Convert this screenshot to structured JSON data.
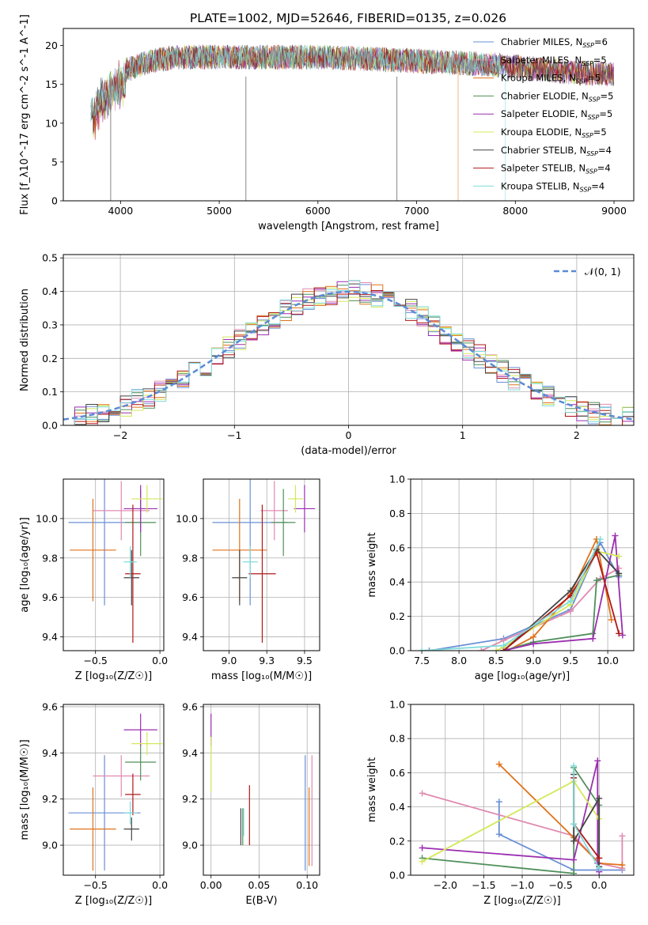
{
  "figure": {
    "title": "PLATE=1002, MJD=52646, FIBERID=0135, z=0.026",
    "series_colors": [
      "#6a8fd6",
      "#e08ab0",
      "#e0721a",
      "#4f8f5a",
      "#9b2eb0",
      "#d4e85a",
      "#444444",
      "#b01818",
      "#7fdcdc"
    ]
  },
  "chart_data": [
    {
      "id": "spectrum",
      "type": "line",
      "xlabel": "wavelength [Angstrom, rest frame]",
      "ylabel": "Flux [f_λ10^-17 erg cm^-2 s^-1 A^-1]",
      "xlim": [
        3420,
        9200
      ],
      "ylim": [
        0,
        22.2
      ],
      "xticks": [
        4000,
        5000,
        6000,
        7000,
        8000,
        9000
      ],
      "yticks": [
        0,
        5,
        10,
        15,
        20
      ],
      "legend_position": "top-right",
      "legend": [
        {
          "text": "Chabrier MILES, N",
          "sub": "SSP",
          "tail": "=6"
        },
        {
          "text": "Salpeter MILES, N",
          "sub": "SSP",
          "tail": "=5"
        },
        {
          "text": "Kroupa MILES, N",
          "sub": "SSP",
          "tail": "=5"
        },
        {
          "text": "Chabrier ELODIE, N",
          "sub": "SSP",
          "tail": "=5"
        },
        {
          "text": "Salpeter ELODIE, N",
          "sub": "SSP",
          "tail": "=5"
        },
        {
          "text": "Kroupa ELODIE, N",
          "sub": "SSP",
          "tail": "=5"
        },
        {
          "text": "Chabrier STELIB, N",
          "sub": "SSP",
          "tail": "=4"
        },
        {
          "text": "Salpeter STELIB, N",
          "sub": "SSP",
          "tail": "=4"
        },
        {
          "text": "Kroupa STELIB, N",
          "sub": "SSP",
          "tail": "=4"
        }
      ],
      "observed_spectrum_envelope": {
        "x": [
          3700,
          3800,
          3950,
          4100,
          4300,
          4600,
          5000,
          5500,
          6000,
          6500,
          7000,
          7400,
          7800,
          8200,
          8600,
          9000
        ],
        "y": [
          11.5,
          14.5,
          16.5,
          17.0,
          18.0,
          18.5,
          18.5,
          18.5,
          18.5,
          18.3,
          18.0,
          17.8,
          17.5,
          17.0,
          16.5,
          16.3
        ]
      }
    },
    {
      "id": "residuals",
      "type": "histogram",
      "xlabel": "(data-model)/error",
      "ylabel": "Normed distribution",
      "xlim": [
        -2.5,
        2.5
      ],
      "ylim": [
        0,
        0.51
      ],
      "xticks": [
        -2,
        -1,
        0,
        1,
        2
      ],
      "yticks": [
        0.0,
        0.1,
        0.2,
        0.3,
        0.4,
        0.5
      ],
      "grid": true,
      "legend_position": "top-right",
      "reference_curve": {
        "label": "𝒩(0, 1)",
        "mean": 0,
        "sigma": 1
      }
    },
    {
      "id": "age-vs-Z",
      "type": "scatter",
      "xlabel": "Z [log₁₀(Z/Z☉)]",
      "ylabel": "age  [log₁₀(age/yr)]",
      "xlim": [
        -0.75,
        0.03
      ],
      "ylim": [
        9.33,
        10.2
      ],
      "xticks": [
        -0.5,
        0.0
      ],
      "yticks": [
        9.4,
        9.6,
        9.8,
        10.0
      ],
      "grid": true,
      "points": [
        {
          "x": -0.43,
          "y": 9.98,
          "xerr": 0.28,
          "yerr": 0.42
        },
        {
          "x": -0.3,
          "y": 10.04,
          "xerr": 0.22,
          "yerr": 0.15
        },
        {
          "x": -0.52,
          "y": 9.84,
          "xerr": 0.18,
          "yerr": 0.26
        },
        {
          "x": -0.15,
          "y": 9.98,
          "xerr": 0.12,
          "yerr": 0.17
        },
        {
          "x": -0.15,
          "y": 10.05,
          "xerr": 0.13,
          "yerr": 0.12
        },
        {
          "x": -0.1,
          "y": 10.1,
          "xerr": 0.12,
          "yerr": 0.07
        },
        {
          "x": -0.22,
          "y": 9.7,
          "xerr": 0.06,
          "yerr": 0.14
        },
        {
          "x": -0.21,
          "y": 9.72,
          "xerr": 0.06,
          "yerr": 0.35
        },
        {
          "x": -0.23,
          "y": 9.78,
          "xerr": 0.05,
          "yerr": 0.08
        }
      ]
    },
    {
      "id": "age-vs-mass",
      "type": "scatter",
      "xlabel": "mass [log₁₀(M/M☉)]",
      "ylabel": "",
      "xlim": [
        8.83,
        9.6
      ],
      "ylim": [
        9.33,
        10.2
      ],
      "xticks": [
        9.0,
        9.25,
        9.5
      ],
      "yticks": [
        9.4,
        9.6,
        9.8,
        10.0
      ],
      "grid": true,
      "points": [
        {
          "x": 9.14,
          "y": 9.98,
          "xerr": 0.25,
          "yerr": 0.42
        },
        {
          "x": 9.3,
          "y": 10.04,
          "xerr": 0.09,
          "yerr": 0.15
        },
        {
          "x": 9.07,
          "y": 9.84,
          "xerr": 0.18,
          "yerr": 0.26
        },
        {
          "x": 9.36,
          "y": 9.98,
          "xerr": 0.08,
          "yerr": 0.17
        },
        {
          "x": 9.5,
          "y": 10.05,
          "xerr": 0.07,
          "yerr": 0.12
        },
        {
          "x": 9.44,
          "y": 10.1,
          "xerr": 0.05,
          "yerr": 0.07
        },
        {
          "x": 9.07,
          "y": 9.7,
          "xerr": 0.05,
          "yerr": 0.14
        },
        {
          "x": 9.22,
          "y": 9.72,
          "xerr": 0.09,
          "yerr": 0.35
        },
        {
          "x": 9.14,
          "y": 9.78,
          "xerr": 0.05,
          "yerr": 0.08
        }
      ]
    },
    {
      "id": "mass-weight-vs-age",
      "type": "line",
      "xlabel": "age  [log₁₀(age/yr)]",
      "ylabel": "mass weight",
      "xlim": [
        7.35,
        10.35
      ],
      "ylim": [
        0,
        1.0
      ],
      "xticks": [
        7.5,
        8.0,
        8.5,
        9.0,
        9.5,
        10.0
      ],
      "yticks": [
        0.0,
        0.2,
        0.4,
        0.6,
        0.8,
        1.0
      ],
      "grid": true,
      "series": [
        {
          "x": [
            7.6,
            8.6,
            9.5,
            9.9,
            10.15
          ],
          "y": [
            0.0,
            0.07,
            0.24,
            0.63,
            0.43
          ]
        },
        {
          "x": [
            8.3,
            8.6,
            9.5,
            9.9,
            10.15
          ],
          "y": [
            0.0,
            0.06,
            0.23,
            0.42,
            0.48
          ]
        },
        {
          "x": [
            8.65,
            9.0,
            9.5,
            9.85,
            10.05
          ],
          "y": [
            0.0,
            0.08,
            0.33,
            0.65,
            0.18
          ]
        },
        {
          "x": [
            8.6,
            9.0,
            9.8,
            9.85,
            10.15
          ],
          "y": [
            0.0,
            0.05,
            0.1,
            0.41,
            0.44
          ]
        },
        {
          "x": [
            8.6,
            9.0,
            9.8,
            10.1,
            10.2
          ],
          "y": [
            0.0,
            0.04,
            0.07,
            0.67,
            0.09
          ]
        },
        {
          "x": [
            8.5,
            8.6,
            9.5,
            9.85,
            10.15
          ],
          "y": [
            0.0,
            0.02,
            0.27,
            0.58,
            0.55
          ]
        },
        {
          "x": [
            8.6,
            9.5,
            9.85,
            10.15
          ],
          "y": [
            0.0,
            0.35,
            0.59,
            0.45
          ]
        },
        {
          "x": [
            8.6,
            9.5,
            9.85,
            10.15
          ],
          "y": [
            0.0,
            0.32,
            0.57,
            0.1
          ]
        },
        {
          "x": [
            7.5,
            8.6,
            9.5,
            9.9
          ],
          "y": [
            0.0,
            0.03,
            0.29,
            0.65
          ]
        }
      ]
    },
    {
      "id": "mass-vs-Z",
      "type": "scatter",
      "xlabel": "Z [log₁₀(Z/Z☉)]",
      "ylabel": "mass [log₁₀(M/M☉)]",
      "xlim": [
        -0.75,
        0.03
      ],
      "ylim": [
        8.87,
        9.61
      ],
      "xticks": [
        -0.5,
        0.0
      ],
      "yticks": [
        9.0,
        9.2,
        9.4,
        9.6
      ],
      "grid": true,
      "points": [
        {
          "x": -0.43,
          "y": 9.14,
          "xerr": 0.28,
          "yerr": 0.25
        },
        {
          "x": -0.3,
          "y": 9.3,
          "xerr": 0.22,
          "yerr": 0.09
        },
        {
          "x": -0.52,
          "y": 9.07,
          "xerr": 0.18,
          "yerr": 0.18
        },
        {
          "x": -0.15,
          "y": 9.36,
          "xerr": 0.12,
          "yerr": 0.08
        },
        {
          "x": -0.15,
          "y": 9.5,
          "xerr": 0.13,
          "yerr": 0.07
        },
        {
          "x": -0.1,
          "y": 9.44,
          "xerr": 0.12,
          "yerr": 0.05
        },
        {
          "x": -0.22,
          "y": 9.07,
          "xerr": 0.06,
          "yerr": 0.05
        },
        {
          "x": -0.21,
          "y": 9.22,
          "xerr": 0.06,
          "yerr": 0.09
        },
        {
          "x": -0.23,
          "y": 9.14,
          "xerr": 0.05,
          "yerr": 0.05
        }
      ]
    },
    {
      "id": "mass-vs-ebv",
      "type": "scatter",
      "xlabel": "E(B-V)",
      "ylabel": "",
      "xlim": [
        -0.008,
        0.113
      ],
      "ylim": [
        8.87,
        9.61
      ],
      "xticks": [
        0.0,
        0.05,
        0.1
      ],
      "yticks": [
        9.0,
        9.2,
        9.4,
        9.6
      ],
      "grid": true,
      "points": [
        {
          "x": 0.098,
          "y": 9.14,
          "yerr": 0.25
        },
        {
          "x": 0.105,
          "y": 9.15,
          "yerr": 0.24
        },
        {
          "x": 0.102,
          "y": 9.08,
          "yerr": 0.17
        },
        {
          "x": 0.033,
          "y": 9.08,
          "yerr": 0.08
        },
        {
          "x": 0.0,
          "y": 9.5,
          "yerr": 0.07
        },
        {
          "x": 0.0,
          "y": 9.35,
          "yerr": 0.12
        },
        {
          "x": 0.031,
          "y": 9.08,
          "yerr": 0.08
        },
        {
          "x": 0.04,
          "y": 9.13,
          "yerr": 0.13
        },
        {
          "x": 0.034,
          "y": 9.1,
          "yerr": 0.06
        }
      ]
    },
    {
      "id": "mass-weight-vs-Z",
      "type": "line",
      "xlabel": "Z [log₁₀(Z/Z☉)]",
      "ylabel": "mass weight",
      "xlim": [
        -2.45,
        0.45
      ],
      "ylim": [
        0,
        1.0
      ],
      "xticks": [
        -2.0,
        -1.5,
        -1.0,
        -0.5,
        0.0
      ],
      "yticks": [
        0.0,
        0.2,
        0.4,
        0.6,
        0.8,
        1.0
      ],
      "grid": true,
      "series": [
        {
          "x": [
            -1.3,
            -1.3,
            -0.33,
            0.0,
            0.3
          ],
          "y": [
            0.43,
            0.24,
            0.03,
            0.03,
            0.03
          ]
        },
        {
          "x": [
            -2.3,
            -0.33,
            0.0,
            0.3,
            0.3
          ],
          "y": [
            0.48,
            0.23,
            0.07,
            0.04,
            0.23
          ]
        },
        {
          "x": [
            -1.3,
            -0.33,
            0.0,
            0.3
          ],
          "y": [
            0.65,
            0.22,
            0.07,
            0.06
          ]
        },
        {
          "x": [
            -2.3,
            -0.33,
            -0.33,
            0.0,
            0.0
          ],
          "y": [
            0.1,
            0.01,
            0.63,
            0.41,
            0.1
          ]
        },
        {
          "x": [
            -2.3,
            -0.33,
            -0.02,
            -0.02,
            0.0
          ],
          "y": [
            0.16,
            0.09,
            0.67,
            0.07,
            0.02
          ]
        },
        {
          "x": [
            -2.3,
            -0.33,
            0.0
          ],
          "y": [
            0.08,
            0.55,
            0.33
          ]
        },
        {
          "x": [
            -0.33,
            -0.33,
            0.0,
            0.0
          ],
          "y": [
            0.59,
            0.2,
            0.45,
            0.05
          ]
        },
        {
          "x": [
            -0.33,
            -0.33,
            0.0
          ],
          "y": [
            0.57,
            0.3,
            0.1
          ]
        },
        {
          "x": [
            -0.33,
            -0.33,
            0.0
          ],
          "y": [
            0.64,
            0.3,
            0.04
          ]
        }
      ]
    }
  ]
}
